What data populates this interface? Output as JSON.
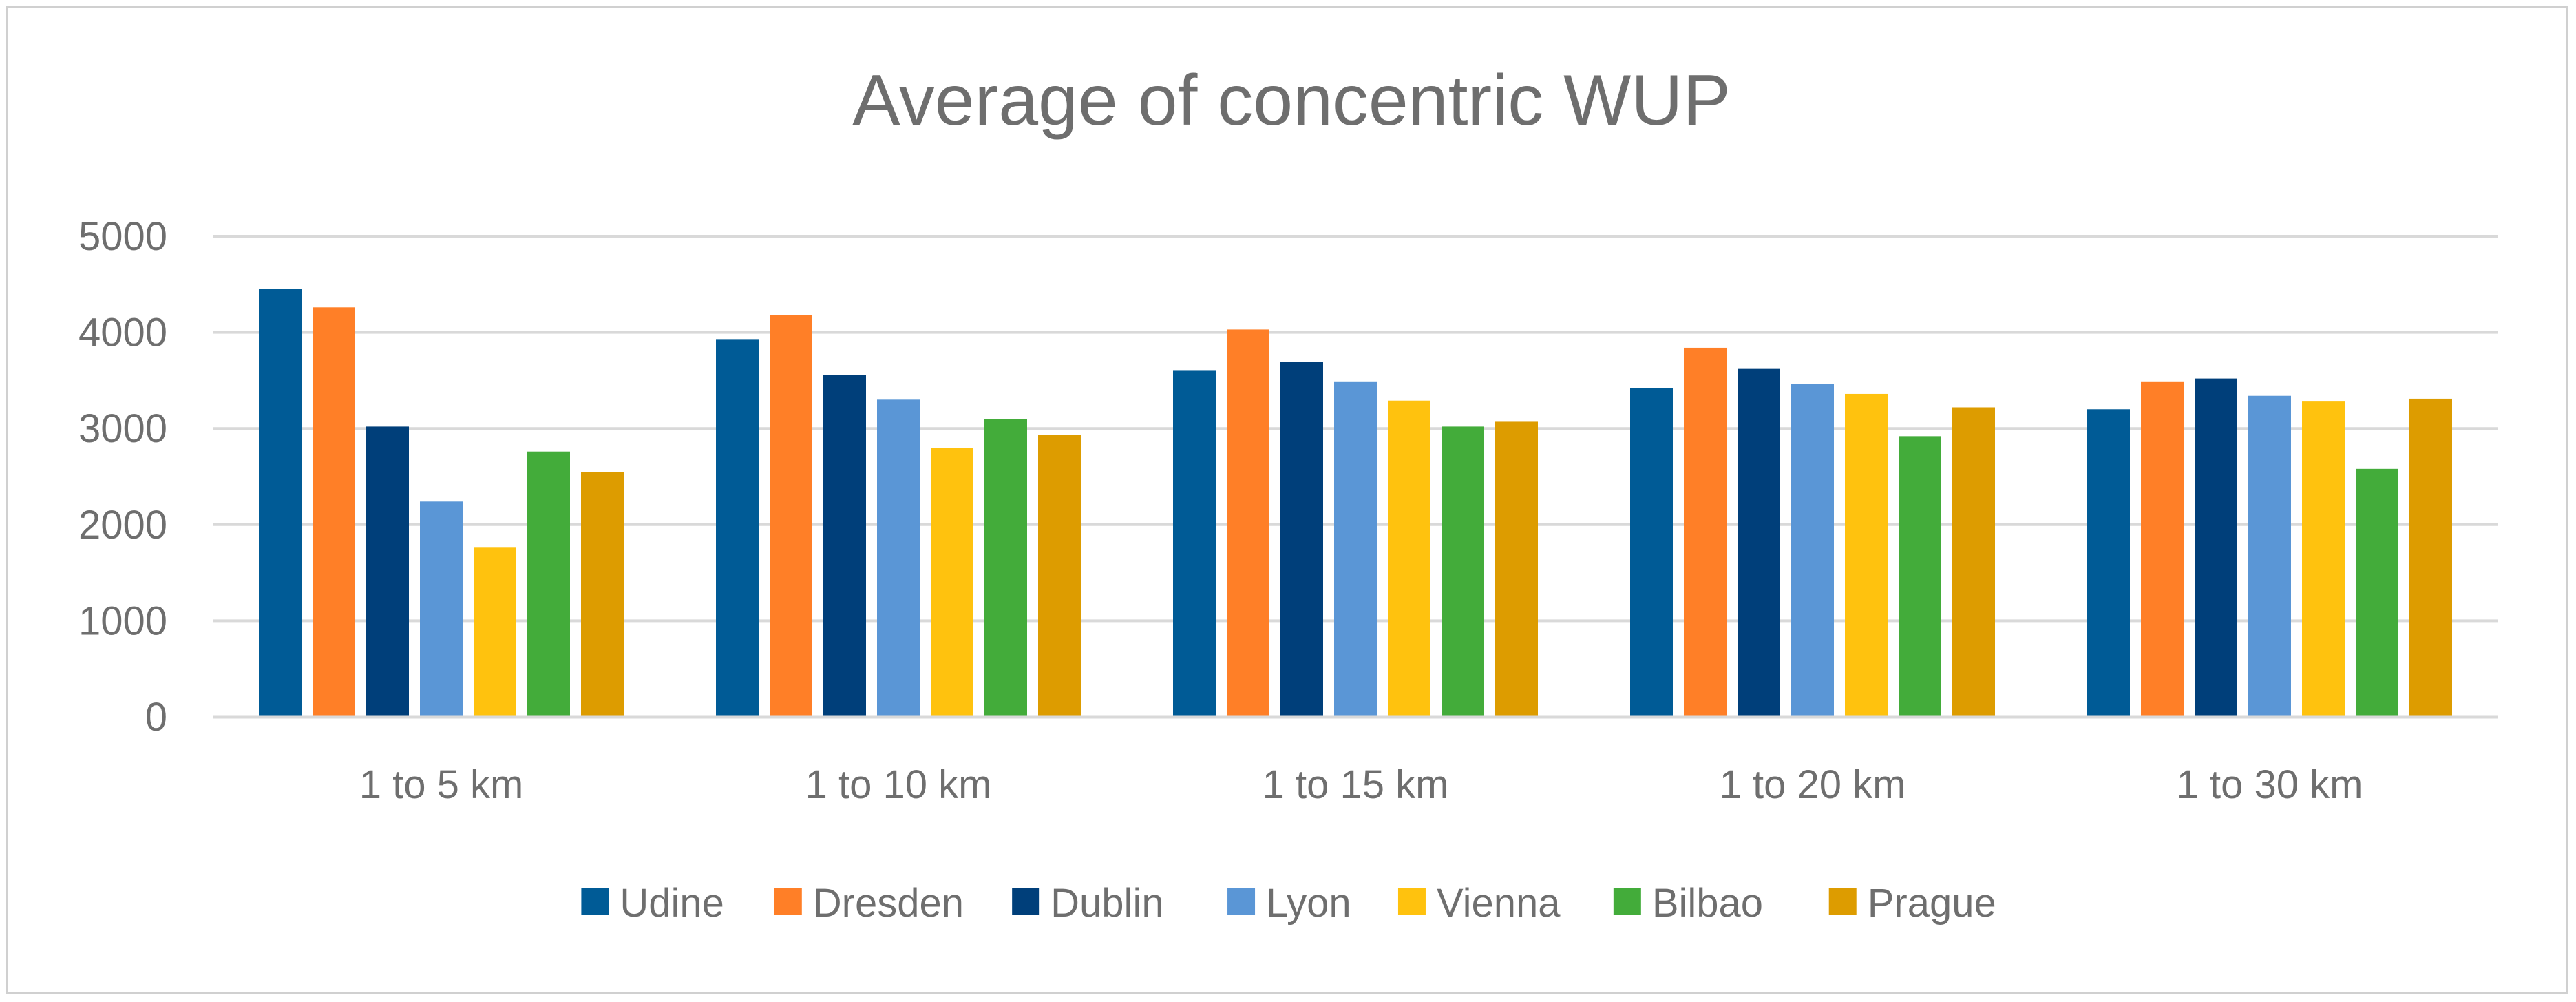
{
  "chart_data": {
    "type": "bar",
    "title": "Average of concentric WUP",
    "xlabel": "",
    "ylabel": "",
    "ylim": [
      0,
      5000
    ],
    "yticks": [
      0,
      1000,
      2000,
      3000,
      4000,
      5000
    ],
    "grid": true,
    "legend_position": "bottom",
    "categories": [
      "1 to 5  km",
      "1 to 10 km",
      "1 to 15 km",
      "1 to 20 km",
      "1 to 30 km"
    ],
    "series": [
      {
        "name": "Udine",
        "color": "#005B96",
        "values": [
          4450,
          3930,
          3600,
          3420,
          3200
        ]
      },
      {
        "name": "Dresden",
        "color": "#FF7F27",
        "values": [
          4260,
          4180,
          4030,
          3840,
          3490
        ]
      },
      {
        "name": "Dublin",
        "color": "#003F7A",
        "values": [
          3020,
          3560,
          3690,
          3620,
          3520
        ]
      },
      {
        "name": "Lyon",
        "color": "#5A96D6",
        "values": [
          2240,
          3300,
          3490,
          3460,
          3340
        ]
      },
      {
        "name": "Vienna",
        "color": "#FFC20E",
        "values": [
          1760,
          2800,
          3290,
          3360,
          3280
        ]
      },
      {
        "name": "Bilbao",
        "color": "#43AC3A",
        "values": [
          2760,
          3100,
          3020,
          2920,
          2580
        ]
      },
      {
        "name": "Prague",
        "color": "#DD9C00",
        "values": [
          2550,
          2930,
          3070,
          3220,
          3310
        ]
      }
    ]
  }
}
